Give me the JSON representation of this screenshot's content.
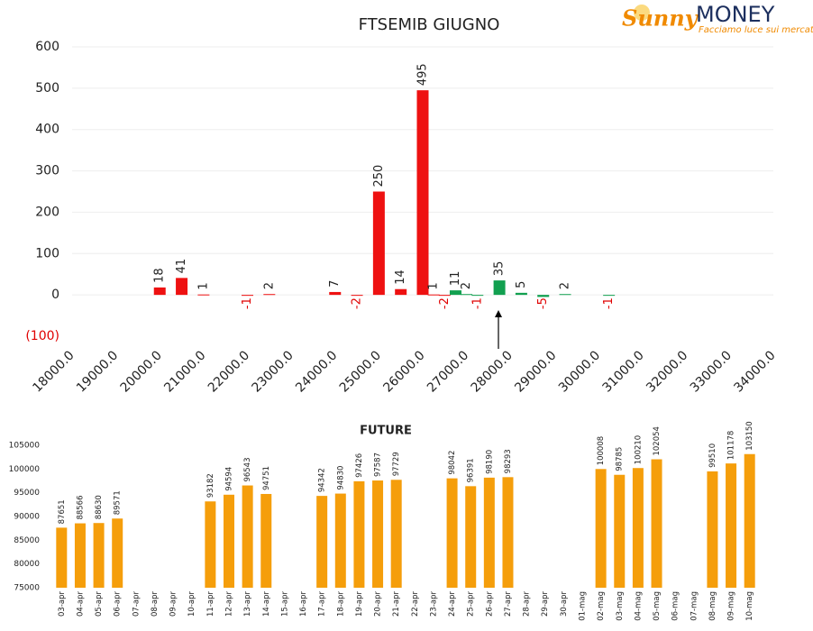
{
  "logo": {
    "brand": "Sunny",
    "brand_2": "MONEY",
    "tagline": "Facciamo luce sui mercati"
  },
  "chart_data": [
    {
      "type": "bar",
      "title": "FTSEMIB GIUGNO",
      "x": [
        20000,
        20500,
        21000,
        22000,
        22500,
        24000,
        24500,
        25000,
        25500,
        26000,
        26250,
        26500,
        26750,
        27000,
        27250,
        27750,
        28250,
        28750,
        29250,
        30250
      ],
      "values": [
        18,
        41,
        1,
        -1,
        2,
        7,
        -2,
        250,
        14,
        495,
        1,
        -2,
        11,
        2,
        -1,
        35,
        5,
        -5,
        2,
        -1
      ],
      "colors": [
        "#ee1111",
        "#ee1111",
        "#ee1111",
        "#ee1111",
        "#ee1111",
        "#ee1111",
        "#ee1111",
        "#ee1111",
        "#ee1111",
        "#ee1111",
        "#ee1111",
        "#ee1111",
        "#12a050",
        "#12a050",
        "#12a050",
        "#12a050",
        "#12a050",
        "#12a050",
        "#12a050",
        "#12a050"
      ],
      "negative_label_color": "#e00000",
      "xlim": [
        18000,
        34000
      ],
      "xticks": [
        {
          "value": 18000,
          "label": "18000.0"
        },
        {
          "value": 19000,
          "label": "19000.0"
        },
        {
          "value": 20000,
          "label": "20000.0"
        },
        {
          "value": 21000,
          "label": "21000.0"
        },
        {
          "value": 22000,
          "label": "22000.0"
        },
        {
          "value": 23000,
          "label": "23000.0"
        },
        {
          "value": 24000,
          "label": "24000.0"
        },
        {
          "value": 25000,
          "label": "25000.0"
        },
        {
          "value": 26000,
          "label": "26000.0"
        },
        {
          "value": 27000,
          "label": "27000.0"
        },
        {
          "value": 28000,
          "label": "28000.0"
        },
        {
          "value": 29000,
          "label": "29000.0"
        },
        {
          "value": 30000,
          "label": "30000.0"
        },
        {
          "value": 31000,
          "label": "31000.0"
        },
        {
          "value": 32000,
          "label": "32000.0"
        },
        {
          "value": 33000,
          "label": "33000.0"
        },
        {
          "value": 34000,
          "label": "34000.0"
        }
      ],
      "ylim": [
        -100,
        600
      ],
      "yticks": [
        {
          "value": -100,
          "label": "(100)"
        },
        0,
        100,
        200,
        300,
        400,
        500,
        600
      ],
      "grid": true
    },
    {
      "type": "bar",
      "title": "FUTURE",
      "categories": [
        "03-apr",
        "04-apr",
        "05-apr",
        "06-apr",
        "07-apr",
        "08-apr",
        "09-apr",
        "10-apr",
        "11-apr",
        "12-apr",
        "13-apr",
        "14-apr",
        "15-apr",
        "16-apr",
        "17-apr",
        "18-apr",
        "19-apr",
        "20-apr",
        "21-apr",
        "22-apr",
        "23-apr",
        "24-apr",
        "25-apr",
        "26-apr",
        "27-apr",
        "28-apr",
        "29-apr",
        "30-apr",
        "01-mag",
        "02-mag",
        "03-mag",
        "04-mag",
        "05-mag",
        "06-mag",
        "07-mag",
        "08-mag",
        "09-mag",
        "10-mag"
      ],
      "values": [
        87651,
        88566,
        88630,
        89571,
        null,
        null,
        null,
        null,
        93182,
        94594,
        96543,
        94751,
        null,
        null,
        94342,
        94830,
        97426,
        97587,
        97729,
        null,
        null,
        98042,
        96391,
        98190,
        98293,
        null,
        null,
        null,
        null,
        100008,
        98785,
        100210,
        102054,
        null,
        null,
        99510,
        101178,
        103150
      ],
      "color": "#f59e0b",
      "ylim": [
        75000,
        105000
      ],
      "yticks": [
        75000,
        80000,
        85000,
        90000,
        95000,
        100000,
        105000
      ],
      "grid": false
    }
  ]
}
